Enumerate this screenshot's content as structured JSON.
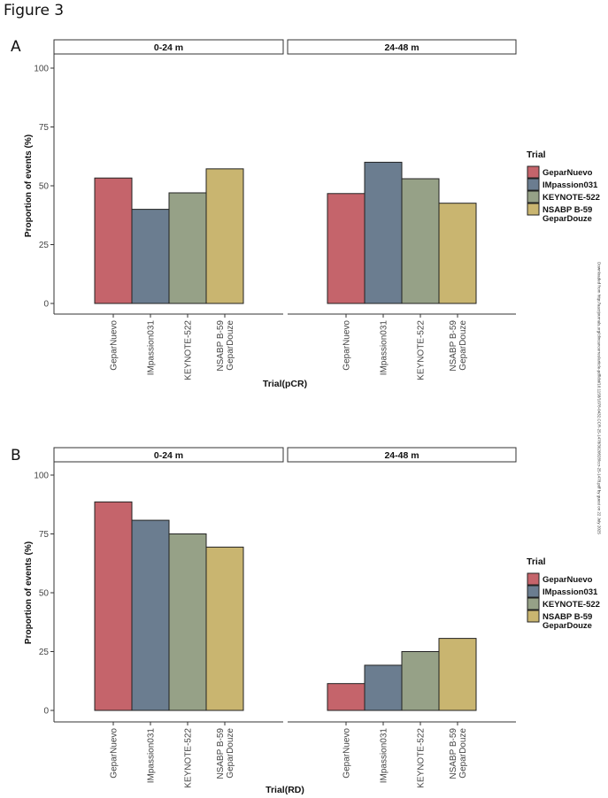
{
  "figure_title": "Figure 3",
  "side_note": "Downloaded from http://aacrjournals.org/clincancerres/article-pdf/doi/10.1158/1078-0432.CCR-25-1478/3620828/ccr-25-1478.pdf by guest on 22 July 2025",
  "colors": {
    "GeparNuevo": "#c5646b",
    "IMpassion031": "#6b7d90",
    "KEYNOTE-522": "#96a187",
    "NSABP B-59 GeparDouze": "#c9b570"
  },
  "chart_data": [
    {
      "type": "bar",
      "panel_label": "A",
      "facets": [
        "0-24 m",
        "24-48 m"
      ],
      "categories": [
        "GeparNuevo",
        "IMpassion031",
        "KEYNOTE-522",
        "NSABP B-59\nGeparDouze"
      ],
      "series": [
        {
          "facet": "0-24 m",
          "values": [
            53.3,
            40.0,
            47.0,
            57.2
          ]
        },
        {
          "facet": "24-48 m",
          "values": [
            46.7,
            60.0,
            53.0,
            42.6
          ]
        }
      ],
      "xlabel": "Trial(pCR)",
      "ylabel": "Proportion of events (%)",
      "ylim": [
        0,
        100
      ],
      "yticks": [
        "0",
        "25",
        "50",
        "75",
        "100"
      ],
      "grid": false,
      "legend": {
        "title": "Trial",
        "position": "right",
        "entries": [
          "GeparNuevo",
          "IMpassion031",
          "KEYNOTE-522",
          "NSABP B-59\nGeparDouze"
        ]
      }
    },
    {
      "type": "bar",
      "panel_label": "B",
      "facets": [
        "0-24 m",
        "24-48 m"
      ],
      "categories": [
        "GeparNuevo",
        "IMpassion031",
        "KEYNOTE-522",
        "NSABP B-59\nGeparDouze"
      ],
      "series": [
        {
          "facet": "0-24 m",
          "values": [
            88.6,
            80.8,
            75.0,
            69.4
          ]
        },
        {
          "facet": "24-48 m",
          "values": [
            11.4,
            19.2,
            25.0,
            30.6
          ]
        }
      ],
      "xlabel": "Trial(RD)",
      "ylabel": "Proportion of events (%)",
      "ylim": [
        0,
        100
      ],
      "yticks": [
        "0",
        "25",
        "50",
        "75",
        "100"
      ],
      "grid": false,
      "legend": {
        "title": "Trial",
        "position": "right",
        "entries": [
          "GeparNuevo",
          "IMpassion031",
          "KEYNOTE-522",
          "NSABP B-59\nGeparDouze"
        ]
      }
    }
  ]
}
